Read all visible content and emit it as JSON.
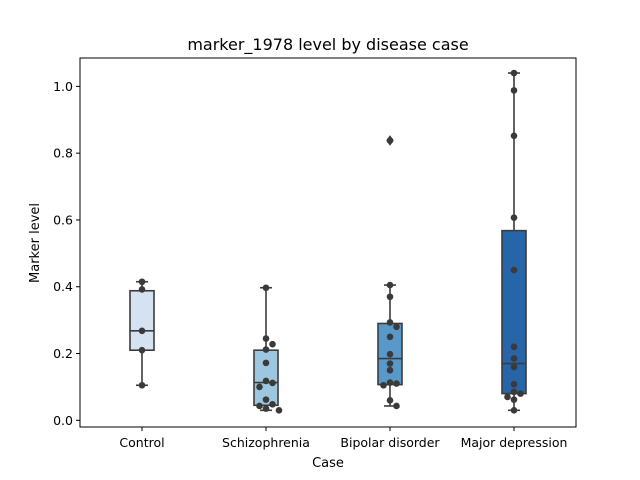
{
  "chart_data": {
    "type": "boxplot",
    "title": "marker_1978 level by disease case",
    "xlabel": "Case",
    "ylabel": "Marker level",
    "ylim": [
      -0.02,
      1.085
    ],
    "yticks": [
      0.0,
      0.2,
      0.4,
      0.6,
      0.8,
      1.0
    ],
    "ytick_labels": [
      "0.0",
      "0.2",
      "0.4",
      "0.6",
      "0.8",
      "1.0"
    ],
    "categories": [
      "Control",
      "Schizophrenia",
      "Bipolar disorder",
      "Major depression"
    ],
    "colors": [
      "#d4e2f2",
      "#9dc7e0",
      "#5899c9",
      "#2565a8"
    ],
    "boxes": [
      {
        "q1": 0.21,
        "median": 0.268,
        "q3": 0.388,
        "whisker_low": 0.105,
        "whisker_high": 0.415,
        "outliers": []
      },
      {
        "q1": 0.045,
        "median": 0.113,
        "q3": 0.21,
        "whisker_low": 0.03,
        "whisker_high": 0.397,
        "outliers": []
      },
      {
        "q1": 0.107,
        "median": 0.185,
        "q3": 0.29,
        "whisker_low": 0.043,
        "whisker_high": 0.405,
        "outliers": [
          0.838
        ]
      },
      {
        "q1": 0.08,
        "median": 0.17,
        "q3": 0.568,
        "whisker_low": 0.03,
        "whisker_high": 1.04,
        "outliers": []
      }
    ],
    "points": [
      [
        0.415,
        0.392,
        0.268,
        0.21,
        0.105
      ],
      [
        0.397,
        0.245,
        0.228,
        0.212,
        0.172,
        0.118,
        0.112,
        0.1,
        0.062,
        0.048,
        0.043,
        0.035,
        0.03
      ],
      [
        0.838,
        0.405,
        0.37,
        0.293,
        0.28,
        0.25,
        0.198,
        0.17,
        0.15,
        0.113,
        0.11,
        0.105,
        0.06,
        0.043
      ],
      [
        1.04,
        0.988,
        0.852,
        0.607,
        0.45,
        0.22,
        0.185,
        0.16,
        0.108,
        0.085,
        0.08,
        0.07,
        0.062,
        0.03
      ]
    ]
  }
}
